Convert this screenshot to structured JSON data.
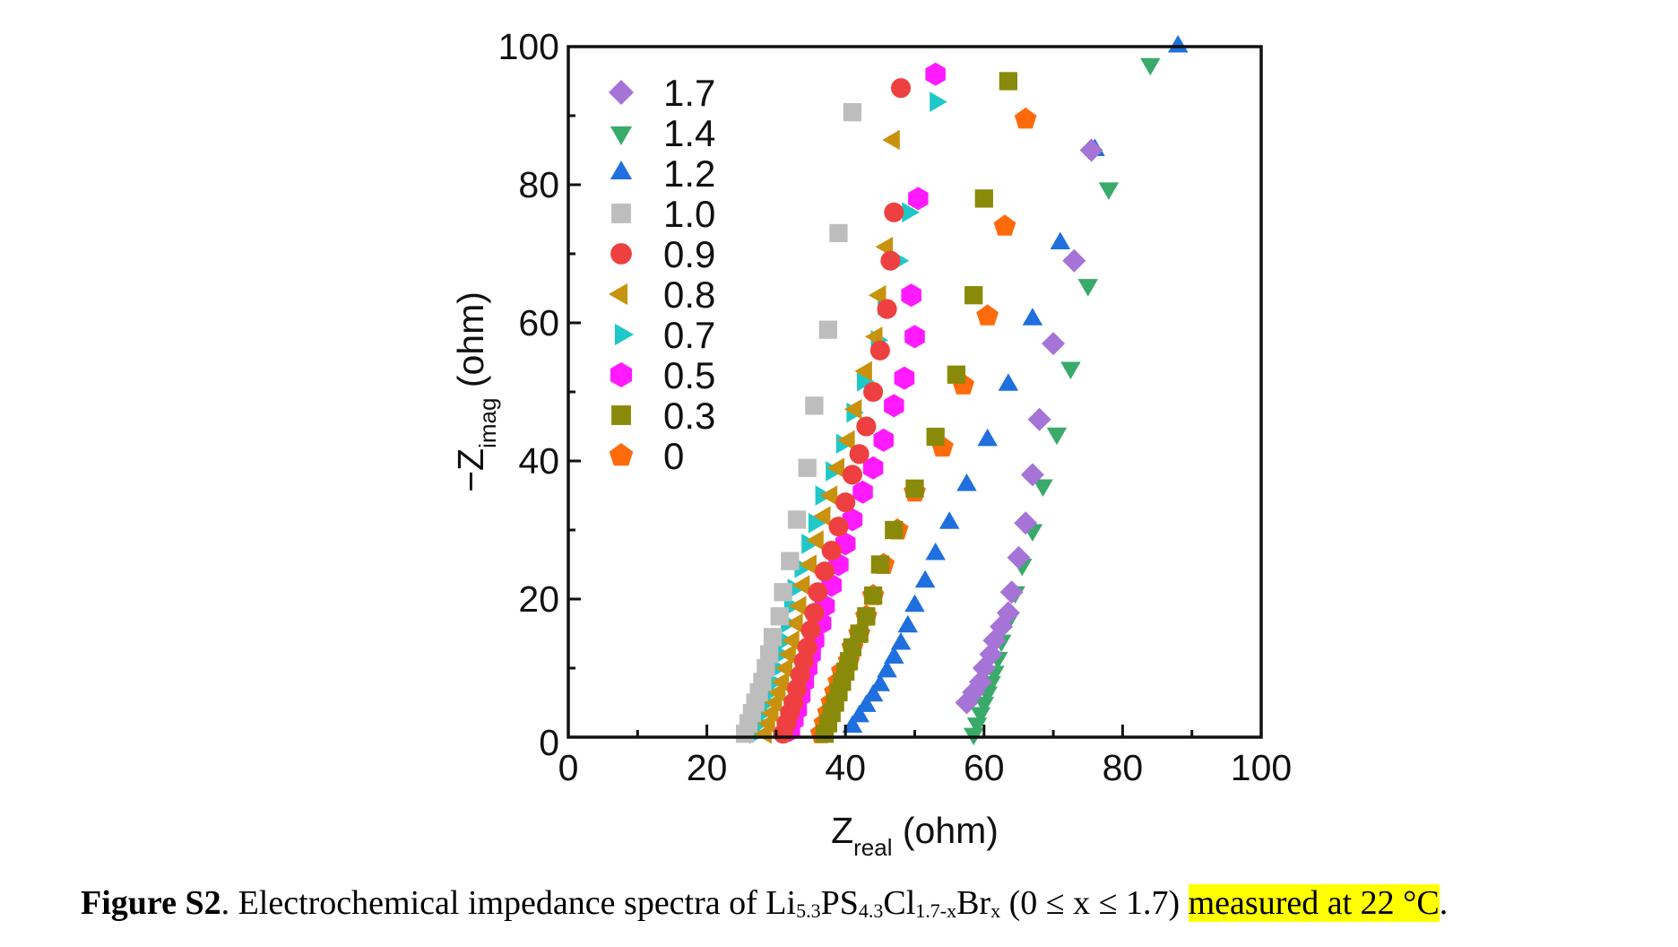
{
  "chart_data": {
    "type": "scatter",
    "title": "",
    "xlabel": "Z",
    "xlabel_sub": "real",
    "xlabel_unit": " (ohm)",
    "ylabel": "−Z",
    "ylabel_sub": "imag",
    "ylabel_unit": " (ohm)",
    "xlim": [
      0,
      100
    ],
    "ylim": [
      0,
      100
    ],
    "xticks": [
      0,
      20,
      40,
      60,
      80,
      100
    ],
    "yticks": [
      0,
      20,
      40,
      60,
      80,
      100
    ],
    "x_minor_ticks": [
      10,
      30,
      50,
      70,
      90
    ],
    "y_minor_ticks": [
      10,
      30,
      50,
      70,
      90
    ],
    "grid": false,
    "legend_position": "top-left",
    "series": [
      {
        "name": "1.7",
        "marker": "diamond",
        "color": "#a673d6",
        "points": [
          [
            57.5,
            5
          ],
          [
            58.5,
            6.5
          ],
          [
            59.5,
            8
          ],
          [
            60,
            10
          ],
          [
            61,
            12
          ],
          [
            61.5,
            14
          ],
          [
            62.5,
            16
          ],
          [
            63.5,
            18
          ],
          [
            64,
            21
          ],
          [
            65,
            26
          ],
          [
            66,
            31
          ],
          [
            67,
            38
          ],
          [
            68,
            46
          ],
          [
            70,
            57
          ],
          [
            73,
            69
          ],
          [
            75.5,
            85
          ]
        ]
      },
      {
        "name": "1.4",
        "marker": "triangle-down",
        "color": "#3aaa6a",
        "points": [
          [
            58.5,
            0.5
          ],
          [
            59,
            2
          ],
          [
            59.5,
            3.5
          ],
          [
            60,
            5
          ],
          [
            60.5,
            6.5
          ],
          [
            61,
            8
          ],
          [
            61.5,
            9.5
          ],
          [
            62,
            11.5
          ],
          [
            62.5,
            14
          ],
          [
            63.5,
            17
          ],
          [
            64.5,
            21
          ],
          [
            65.5,
            25
          ],
          [
            67,
            30
          ],
          [
            68.5,
            36.5
          ],
          [
            70.5,
            44
          ],
          [
            72.5,
            53.5
          ],
          [
            75,
            65.5
          ],
          [
            78,
            79.5
          ],
          [
            84,
            97.5
          ]
        ]
      },
      {
        "name": "1.2",
        "marker": "triangle-up",
        "color": "#1f6fde",
        "points": [
          [
            41,
            1.5
          ],
          [
            42,
            3
          ],
          [
            43,
            4.5
          ],
          [
            44,
            6
          ],
          [
            45,
            7.5
          ],
          [
            46,
            9.5
          ],
          [
            47,
            11.5
          ],
          [
            48,
            13.5
          ],
          [
            49,
            16
          ],
          [
            50,
            19
          ],
          [
            51.5,
            22.5
          ],
          [
            53,
            26.5
          ],
          [
            55,
            31
          ],
          [
            57.5,
            36.5
          ],
          [
            60.5,
            43
          ],
          [
            63.5,
            51
          ],
          [
            67,
            60.5
          ],
          [
            71,
            71.5
          ],
          [
            76,
            85
          ],
          [
            88,
            100
          ]
        ]
      },
      {
        "name": "1.0",
        "marker": "square",
        "color": "#bdbdbd",
        "points": [
          [
            25.5,
            0.5
          ],
          [
            26,
            2
          ],
          [
            26.5,
            3.5
          ],
          [
            27,
            5
          ],
          [
            27.5,
            6.5
          ],
          [
            28,
            8
          ],
          [
            28.5,
            10
          ],
          [
            29,
            12
          ],
          [
            29.5,
            14.5
          ],
          [
            30.5,
            17.5
          ],
          [
            31,
            21
          ],
          [
            32,
            25.5
          ],
          [
            33,
            31.5
          ],
          [
            34.5,
            39
          ],
          [
            35.5,
            48
          ],
          [
            37.5,
            59
          ],
          [
            39,
            73
          ],
          [
            41,
            90.5
          ]
        ]
      },
      {
        "name": "0.9",
        "marker": "circle",
        "color": "#ee4040",
        "points": [
          [
            31,
            0.5
          ],
          [
            31.5,
            2
          ],
          [
            32,
            3.5
          ],
          [
            32.5,
            5
          ],
          [
            33,
            7
          ],
          [
            33.5,
            9
          ],
          [
            34,
            11
          ],
          [
            34.5,
            13
          ],
          [
            35,
            15.5
          ],
          [
            35.5,
            18
          ],
          [
            36,
            21
          ],
          [
            37,
            24
          ],
          [
            38,
            27
          ],
          [
            39,
            30.5
          ],
          [
            40,
            34
          ],
          [
            41,
            38
          ],
          [
            42,
            41
          ],
          [
            43,
            45
          ],
          [
            44,
            50
          ],
          [
            45,
            56
          ],
          [
            46,
            62
          ],
          [
            46.5,
            69
          ],
          [
            47,
            76
          ],
          [
            48,
            94
          ]
        ]
      },
      {
        "name": "0.8",
        "marker": "triangle-left",
        "color": "#c8920e",
        "points": [
          [
            28.5,
            0.5
          ],
          [
            29,
            2
          ],
          [
            29.5,
            3.5
          ],
          [
            30,
            5
          ],
          [
            30.5,
            6.5
          ],
          [
            31,
            8
          ],
          [
            31.5,
            10
          ],
          [
            32,
            12
          ],
          [
            32.5,
            14
          ],
          [
            33,
            16.5
          ],
          [
            33.5,
            19
          ],
          [
            34,
            22
          ],
          [
            35,
            25
          ],
          [
            36,
            28.5
          ],
          [
            37,
            32
          ],
          [
            38,
            35
          ],
          [
            39,
            39
          ],
          [
            40.5,
            43
          ],
          [
            41.5,
            47.5
          ],
          [
            43,
            53
          ],
          [
            44.5,
            58
          ],
          [
            45,
            64
          ],
          [
            46,
            71
          ],
          [
            47,
            86.5
          ]
        ]
      },
      {
        "name": "0.7",
        "marker": "triangle-right",
        "color": "#1ec8c8",
        "points": [
          [
            27,
            0.5
          ],
          [
            27.5,
            2
          ],
          [
            28,
            3.5
          ],
          [
            28.5,
            5
          ],
          [
            29,
            6.5
          ],
          [
            29.5,
            8
          ],
          [
            30,
            10
          ],
          [
            30.5,
            12
          ],
          [
            31,
            14
          ],
          [
            31.5,
            16.5
          ],
          [
            32,
            19
          ],
          [
            32.5,
            21.5
          ],
          [
            33.5,
            24.5
          ],
          [
            34.5,
            28
          ],
          [
            35.5,
            31
          ],
          [
            36.5,
            35
          ],
          [
            38,
            38.5
          ],
          [
            39.5,
            42.5
          ],
          [
            41,
            47
          ],
          [
            42.5,
            51.5
          ],
          [
            44.5,
            57.5
          ],
          [
            45.5,
            62.5
          ],
          [
            47.5,
            69
          ],
          [
            49,
            76
          ],
          [
            53,
            92
          ]
        ]
      },
      {
        "name": "0.5",
        "marker": "hexagon",
        "color": "#ff1aff",
        "points": [
          [
            32,
            1
          ],
          [
            32.5,
            2.5
          ],
          [
            33,
            4
          ],
          [
            33.5,
            6
          ],
          [
            34,
            8
          ],
          [
            34.5,
            10
          ],
          [
            35,
            12
          ],
          [
            35.5,
            14
          ],
          [
            36.5,
            16.5
          ],
          [
            37,
            19
          ],
          [
            38,
            22
          ],
          [
            39,
            25
          ],
          [
            40,
            28
          ],
          [
            41,
            31.5
          ],
          [
            42.5,
            35.5
          ],
          [
            44,
            39
          ],
          [
            45.5,
            43
          ],
          [
            47,
            48
          ],
          [
            48.5,
            52
          ],
          [
            50,
            58
          ],
          [
            49.5,
            64
          ],
          [
            50.5,
            78
          ],
          [
            53,
            96
          ]
        ]
      },
      {
        "name": "0.3",
        "marker": "square",
        "color": "#8a8a0a",
        "points": [
          [
            37,
            0.5
          ],
          [
            37.5,
            2
          ],
          [
            38,
            3.5
          ],
          [
            38.5,
            5
          ],
          [
            39,
            6.5
          ],
          [
            39.5,
            8
          ],
          [
            40,
            9.5
          ],
          [
            40.5,
            11
          ],
          [
            41,
            13
          ],
          [
            42,
            15
          ],
          [
            43,
            17.5
          ],
          [
            44,
            20.5
          ],
          [
            45,
            25
          ],
          [
            47,
            30
          ],
          [
            50,
            36
          ],
          [
            53,
            43.5
          ],
          [
            56,
            52.5
          ],
          [
            58.5,
            64
          ],
          [
            60,
            78
          ],
          [
            63.5,
            95
          ]
        ]
      },
      {
        "name": "0",
        "marker": "pentagon",
        "color": "#ff6a0a",
        "points": [
          [
            36.5,
            0.5
          ],
          [
            37,
            2
          ],
          [
            37.5,
            3.5
          ],
          [
            38,
            5
          ],
          [
            38.5,
            6.5
          ],
          [
            39,
            8
          ],
          [
            39.5,
            9.5
          ],
          [
            40.5,
            11
          ],
          [
            41,
            13
          ],
          [
            42,
            15
          ],
          [
            43,
            17.5
          ],
          [
            44,
            20.5
          ],
          [
            45.5,
            25
          ],
          [
            47.5,
            30
          ],
          [
            50,
            35.5
          ],
          [
            54,
            42
          ],
          [
            57,
            51
          ],
          [
            60.5,
            61
          ],
          [
            63,
            74
          ],
          [
            66,
            89.5
          ]
        ]
      }
    ]
  },
  "caption": {
    "label": "Figure S2",
    "text_before": ". Electrochemical impedance spectra of Li",
    "sub1": "5.3",
    "text2": "PS",
    "sub2": "4.3",
    "text3": "Cl",
    "sub3": "1.7-x",
    "text4": "Br",
    "sub4": "x",
    "text5": " (0 ≤ x ≤ 1.7) ",
    "highlighted": "measured at  22 °C",
    "end": "."
  }
}
